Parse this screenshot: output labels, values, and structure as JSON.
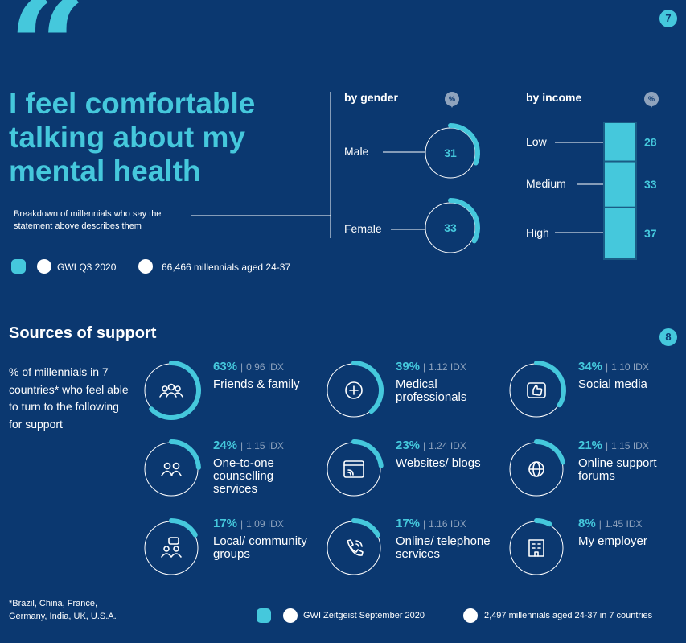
{
  "page_number_top": "7",
  "page_number_bottom": "8",
  "headline": "I feel comfortable talking about my mental health",
  "subtitle": "Breakdown of millennials who say the statement above describes them",
  "top_source": {
    "label": "GWI Q3 2020",
    "sample": "66,466 millennials aged 24-37"
  },
  "pct_symbol": "%",
  "colors": {
    "background": "#0b3870",
    "accent": "#45c8dc",
    "muted": "#8fa3bd",
    "bar_border": "#1a5c85"
  },
  "chart_data": [
    {
      "type": "donut",
      "title": "by gender",
      "unit": "%",
      "categories": [
        "Male",
        "Female"
      ],
      "values": [
        31,
        33
      ]
    },
    {
      "type": "stacked-bar",
      "title": "by income",
      "unit": "%",
      "categories": [
        "Low",
        "Medium",
        "High"
      ],
      "values": [
        28,
        33,
        37
      ]
    },
    {
      "type": "donut",
      "title": "Sources of support",
      "description": "% of millennials in 7 countries* who feel able to turn to the following for support",
      "unit": "%",
      "items": [
        {
          "name": "Friends & family",
          "value": 63,
          "pct": "63%",
          "idx": "0.96 IDX",
          "icon": "people-group-icon"
        },
        {
          "name": "Medical professionals",
          "value": 39,
          "pct": "39%",
          "idx": "1.12 IDX",
          "icon": "medical-cross-icon"
        },
        {
          "name": "Social media",
          "value": 34,
          "pct": "34%",
          "idx": "1.10 IDX",
          "icon": "thumbs-up-icon"
        },
        {
          "name": "One-to-one counselling services",
          "value": 24,
          "pct": "24%",
          "idx": "1.15 IDX",
          "icon": "two-people-icon"
        },
        {
          "name": "Websites/ blogs",
          "value": 23,
          "pct": "23%",
          "idx": "1.24 IDX",
          "icon": "browser-feed-icon"
        },
        {
          "name": "Online support forums",
          "value": 21,
          "pct": "21%",
          "idx": "1.15 IDX",
          "icon": "globe-icon"
        },
        {
          "name": "Local/ community groups",
          "value": 17,
          "pct": "17%",
          "idx": "1.09 IDX",
          "icon": "chat-people-icon"
        },
        {
          "name": "Online/ telephone services",
          "value": 17,
          "pct": "17%",
          "idx": "1.16 IDX",
          "icon": "phone-icon"
        },
        {
          "name": "My employer",
          "value": 8,
          "pct": "8%",
          "idx": "1.45 IDX",
          "icon": "building-icon"
        }
      ]
    }
  ],
  "footnote": "*Brazil, China, France, Germany, India, UK, U.S.A.",
  "bottom_source": {
    "label": "GWI Zeitgeist September 2020",
    "sample": "2,497 millennials aged 24-37 in 7 countries"
  }
}
